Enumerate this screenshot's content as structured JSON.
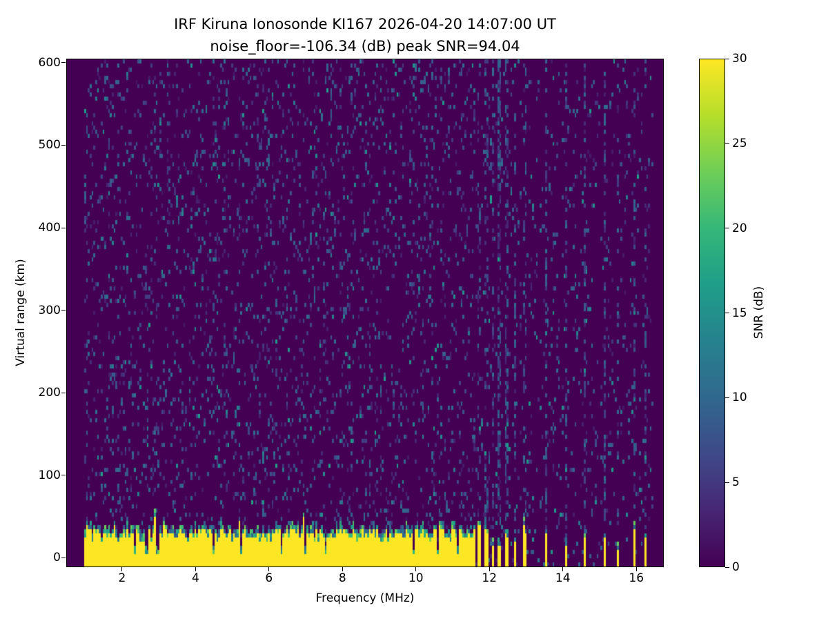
{
  "chart_data": {
    "type": "heatmap",
    "title": "IRF Kiruna Ionosonde KI167 2026-04-20 14:07:00  UT",
    "subtitle": "noise_floor=-106.34 (dB) peak SNR=94.04",
    "station": "IRF Kiruna Ionosonde KI167",
    "timestamp_ut": "2026-04-20 14:07:00 UT",
    "noise_floor_db": -106.34,
    "peak_snr_db": 94.04,
    "xlabel": "Frequency (MHz)",
    "ylabel": "Virtual range (km)",
    "xticks": [
      2,
      4,
      6,
      8,
      10,
      12,
      14,
      16
    ],
    "yticks": [
      0,
      100,
      200,
      300,
      400,
      500,
      600
    ],
    "xlim_mhz": [
      0.48,
      16.71
    ],
    "ylim_km": [
      -10,
      605
    ],
    "colorbar": {
      "label": "SNR (dB)",
      "min": 0,
      "max": 30,
      "ticks": [
        0,
        5,
        10,
        15,
        20,
        25,
        30
      ],
      "colormap": "viridis",
      "low_color": "#440154",
      "high_color": "#fde725"
    },
    "render": {
      "seed": 20260420,
      "freq_step_mhz": 0.05,
      "range_step_km": 5,
      "data_freq_range_mhz": [
        0.95,
        16.45
      ]
    },
    "background": {
      "base_snr_db": 0,
      "speckle_probability_active": 0.1,
      "speckle_probability_quiet": 0.05,
      "speckle_snr_range_db": [
        2,
        11
      ],
      "bright_speckle_probability": 0.012,
      "bright_speckle_snr_range_db": [
        8,
        17
      ]
    },
    "ground_clutter": {
      "freq_range_mhz": [
        0.95,
        11.6
      ],
      "snr_db": 30,
      "top_km_base": 18,
      "top_km_jitter": 16,
      "spike_probability": 0.04,
      "spike_extra_km": 18,
      "fringe_snr_range_db": [
        8,
        24
      ],
      "gap_freqs_mhz": [
        2.3,
        2.62,
        2.92,
        4.45,
        5.2,
        6.3,
        6.95,
        7.5,
        9.9,
        10.55,
        11.1
      ]
    },
    "interference_lines": [
      {
        "mhz": 11.68,
        "width_mhz": 0.08,
        "clutter_top_km": 30,
        "speckle_probability": 0.2
      },
      {
        "mhz": 11.87,
        "width_mhz": 0.08,
        "clutter_top_km": 26,
        "speckle_probability": 0.3
      },
      {
        "mhz": 12.06,
        "width_mhz": 0.08,
        "clutter_top_km": 22,
        "speckle_probability": 0.35
      },
      {
        "mhz": 12.25,
        "width_mhz": 0.1,
        "clutter_top_km": 18,
        "speckle_probability": 0.5
      },
      {
        "mhz": 12.45,
        "width_mhz": 0.1,
        "clutter_top_km": 25,
        "speckle_probability": 0.5
      },
      {
        "mhz": 12.65,
        "width_mhz": 0.08,
        "clutter_top_km": 20,
        "speckle_probability": 0.3
      },
      {
        "mhz": 12.92,
        "width_mhz": 0.08,
        "clutter_top_km": 28,
        "speckle_probability": 0.25
      },
      {
        "mhz": 13.5,
        "width_mhz": 0.08,
        "clutter_top_km": 24,
        "speckle_probability": 0.45
      },
      {
        "mhz": 14.05,
        "width_mhz": 0.08,
        "clutter_top_km": 18,
        "speckle_probability": 0.3
      },
      {
        "mhz": 14.55,
        "width_mhz": 0.08,
        "clutter_top_km": 26,
        "speckle_probability": 0.4
      },
      {
        "mhz": 15.1,
        "width_mhz": 0.08,
        "clutter_top_km": 20,
        "speckle_probability": 0.45
      },
      {
        "mhz": 15.45,
        "width_mhz": 0.08,
        "clutter_top_km": 14,
        "speckle_probability": 0.3
      },
      {
        "mhz": 15.9,
        "width_mhz": 0.08,
        "clutter_top_km": 22,
        "speckle_probability": 0.35
      },
      {
        "mhz": 16.2,
        "width_mhz": 0.08,
        "clutter_top_km": 18,
        "speckle_probability": 0.3
      }
    ]
  }
}
